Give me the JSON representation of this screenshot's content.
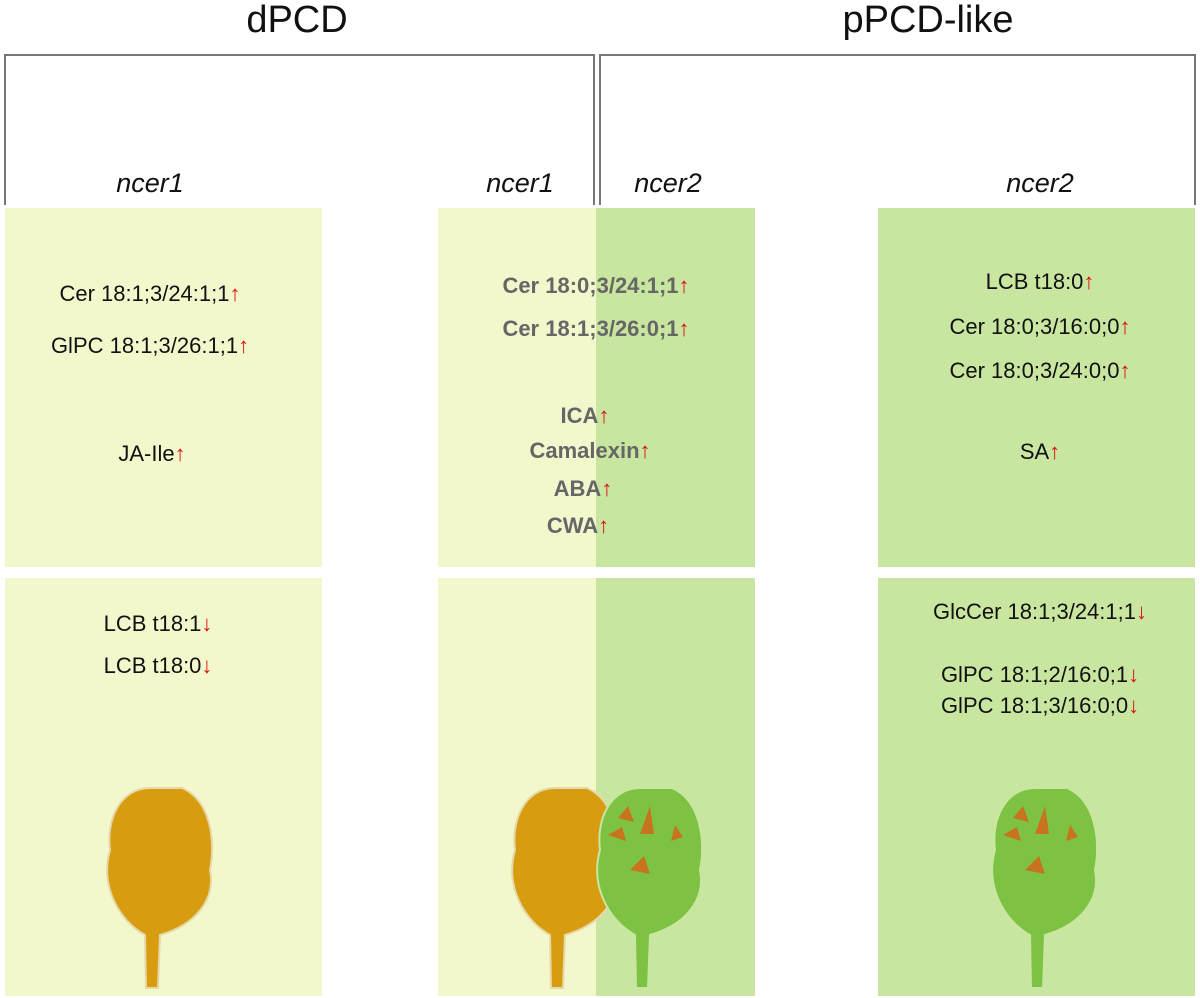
{
  "headers": [
    "dPCD",
    "pPCD-like"
  ],
  "labels": [
    "ncer1",
    "ncer1",
    "ncer2",
    "ncer2"
  ],
  "entries": [
    {
      "text": "Cer 18:1;3/24:1;1",
      "arrow": "↑"
    },
    {
      "text": "GlPC 18:1;3/26:1;1",
      "arrow": "↑"
    },
    {
      "text": "JA-Ile",
      "arrow": "↑"
    },
    {
      "text": "LCB t18:1",
      "arrow": "↓"
    },
    {
      "text": "LCB t18:0",
      "arrow": "↓"
    },
    {
      "text": "Cer 18:0;3/24:1;1",
      "arrow": "↑"
    },
    {
      "text": "Cer 18:1;3/26:0;1",
      "arrow": "↑"
    },
    {
      "text": "ICA",
      "arrow": "↑"
    },
    {
      "text": "Camalexin",
      "arrow": "↑"
    },
    {
      "text": "ABA",
      "arrow": "↑"
    },
    {
      "text": "CWA",
      "arrow": "↑"
    },
    {
      "text": "LCB t18:0",
      "arrow": "↑"
    },
    {
      "text": "Cer 18:0;3/16:0;0",
      "arrow": "↑"
    },
    {
      "text": "Cer 18:0;3/24:0;0",
      "arrow": "↑"
    },
    {
      "text": "SA",
      "arrow": "↑"
    },
    {
      "text": "GlcCer 18:1;3/24:1;1",
      "arrow": "↓"
    },
    {
      "text": "GlPC 18:1;2/16:0;1",
      "arrow": "↓"
    },
    {
      "text": "GlPC 18:1;3/16:0;0",
      "arrow": "↓"
    }
  ]
}
